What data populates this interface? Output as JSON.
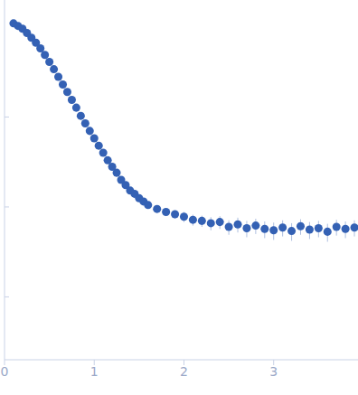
{
  "chart_data": {
    "type": "scatter",
    "log": "y",
    "tick_labels": "x",
    "color": "#3461b4",
    "marker": "circle",
    "xlim": [
      0,
      3.94
    ],
    "xticks": [
      0,
      1,
      2,
      3
    ],
    "ylim": [
      0.002,
      20
    ],
    "yticks": [
      0.01,
      0.1,
      1
    ],
    "x": [
      0.1,
      0.15,
      0.2,
      0.25,
      0.3,
      0.35,
      0.4,
      0.45,
      0.5,
      0.55,
      0.6,
      0.65,
      0.7,
      0.75,
      0.8,
      0.85,
      0.9,
      0.95,
      1.0,
      1.05,
      1.1,
      1.15,
      1.2,
      1.25,
      1.3,
      1.35,
      1.4,
      1.45,
      1.5,
      1.55,
      1.6,
      1.7,
      1.8,
      1.9,
      2.0,
      2.1,
      2.2,
      2.3,
      2.4,
      2.5,
      2.6,
      2.7,
      2.8,
      2.9,
      3.0,
      3.1,
      3.2,
      3.3,
      3.4,
      3.5,
      3.6,
      3.7,
      3.8,
      3.9
    ],
    "values": [
      11.0,
      10.3,
      9.6,
      8.6,
      7.6,
      6.7,
      5.8,
      4.9,
      4.1,
      3.4,
      2.8,
      2.3,
      1.9,
      1.55,
      1.27,
      1.03,
      0.85,
      0.7,
      0.58,
      0.48,
      0.4,
      0.33,
      0.28,
      0.24,
      0.2,
      0.175,
      0.152,
      0.14,
      0.125,
      0.115,
      0.105,
      0.095,
      0.088,
      0.083,
      0.078,
      0.072,
      0.07,
      0.066,
      0.068,
      0.06,
      0.064,
      0.058,
      0.062,
      0.057,
      0.055,
      0.059,
      0.054,
      0.061,
      0.056,
      0.058,
      0.053,
      0.06,
      0.057,
      0.059
    ],
    "errors": [
      0.6,
      0.3,
      0.2,
      0.15,
      0.12,
      0.1,
      0.08,
      0.06,
      0.05,
      0.04,
      0.03,
      0.025,
      0.02,
      0.018,
      0.015,
      0.012,
      0.01,
      0.009,
      0.008,
      0.007,
      0.006,
      0.006,
      0.006,
      0.006,
      0.006,
      0.006,
      0.007,
      0.007,
      0.007,
      0.008,
      0.008,
      0.008,
      0.009,
      0.009,
      0.01,
      0.01,
      0.01,
      0.011,
      0.011,
      0.011,
      0.012,
      0.012,
      0.012,
      0.012,
      0.012,
      0.012,
      0.012,
      0.012,
      0.012,
      0.012,
      0.012,
      0.012,
      0.012,
      0.012
    ]
  }
}
